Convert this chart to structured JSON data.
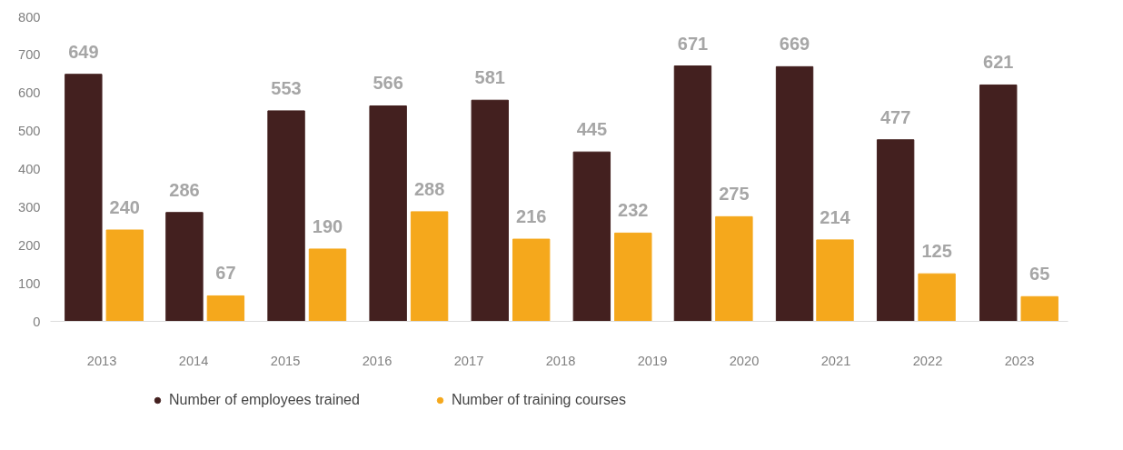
{
  "chart_data": {
    "type": "bar",
    "xlim": [
      2012.44,
      2023.53
    ],
    "xticks": [
      2013,
      2014,
      2015,
      2016,
      2017,
      2018,
      2019,
      2020,
      2021,
      2022,
      2023
    ],
    "series": [
      {
        "name": "Number of employees trained",
        "color": "#43201f",
        "x": [
          2012.8,
          2013.9,
          2015.01,
          2016.12,
          2017.23,
          2018.34,
          2019.44,
          2020.55,
          2021.65,
          2022.77
        ],
        "values": [
          649,
          286,
          553,
          566,
          581,
          445,
          671,
          669,
          477,
          621
        ]
      },
      {
        "name": "Number of training courses",
        "color": "#f5a81c",
        "x": [
          2013.25,
          2014.35,
          2015.46,
          2016.57,
          2017.68,
          2018.79,
          2019.89,
          2020.99,
          2022.1,
          2023.22
        ],
        "values": [
          240,
          67,
          190,
          288,
          216,
          232,
          275,
          214,
          125,
          65
        ]
      }
    ],
    "ylim": [
      0,
      800
    ],
    "yticks": [
      0,
      100,
      200,
      300,
      400,
      500,
      600,
      700,
      800
    ],
    "legend": "bottom",
    "data_labels": true
  }
}
